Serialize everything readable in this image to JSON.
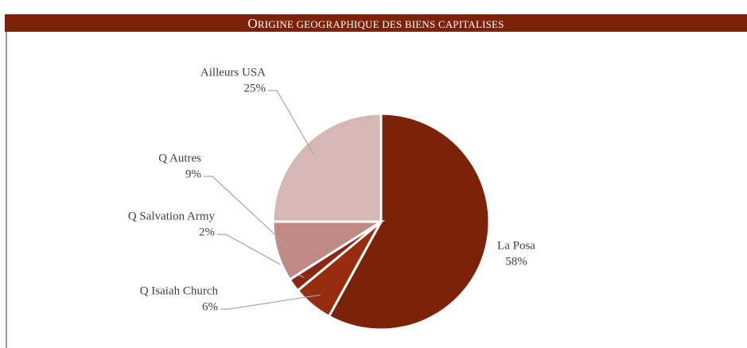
{
  "chart_data": {
    "type": "pie",
    "title": "ORIGINE GEOGRAPHIQUE DES BIENS CAPITALISES",
    "categories": [
      "La Posa",
      "Q Isaiah Church",
      "Q Salvation Army",
      "Q Autres",
      "Ailleurs USA"
    ],
    "values": [
      58,
      6,
      2,
      9,
      25
    ],
    "value_labels": [
      "58%",
      "6%",
      "2%",
      "9%",
      "25%"
    ],
    "colors": [
      "#7b2209",
      "#972c0e",
      "#8a2612",
      "#c08a84",
      "#d7b7b3"
    ]
  }
}
